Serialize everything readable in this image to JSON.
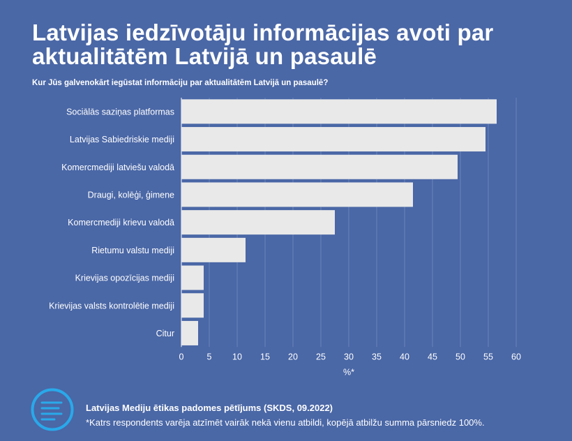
{
  "title": "Latvijas iedzīvotāju informācijas avoti par aktualitātēm Latvijā un pasaulē",
  "subtitle": "Kur Jūs galvenokārt iegūstat informāciju par aktualitātēm Latvijā un pasaulē?",
  "footer": {
    "icon": "menu-lines-icon",
    "source": "Latvijas Mediju ētikas padomes pētījums (SKDS, 09.2022)",
    "note": "*Katrs respondents varēja atzīmēt vairāk nekā vienu atbildi, kopējā atbilžu summa pārsniedz 100%."
  },
  "colors": {
    "background": "#4a67a6",
    "bar": "#e9e9e9",
    "grid": "#6c84b8",
    "text": "#ffffff"
  },
  "chart_data": {
    "type": "bar",
    "orientation": "horizontal",
    "categories": [
      "Sociālās saziņas platformas",
      "Latvijas Sabiedriskie mediji",
      "Komercmediji latviešu valodā",
      "Draugi, kolēģi, ģimene",
      "Komercmediji krievu valodā",
      "Rietumu valstu mediji",
      "Krievijas opozīcijas mediji",
      "Krievijas valsts kontrolētie mediji",
      "Citur"
    ],
    "values": [
      56.5,
      54.5,
      49.5,
      41.5,
      27.5,
      11.5,
      4,
      4,
      3
    ],
    "xlabel": "%*",
    "xlim": [
      0,
      60
    ],
    "xticks": [
      0,
      5,
      10,
      15,
      20,
      25,
      30,
      35,
      40,
      45,
      50,
      55,
      60
    ],
    "grid": "vertical"
  }
}
